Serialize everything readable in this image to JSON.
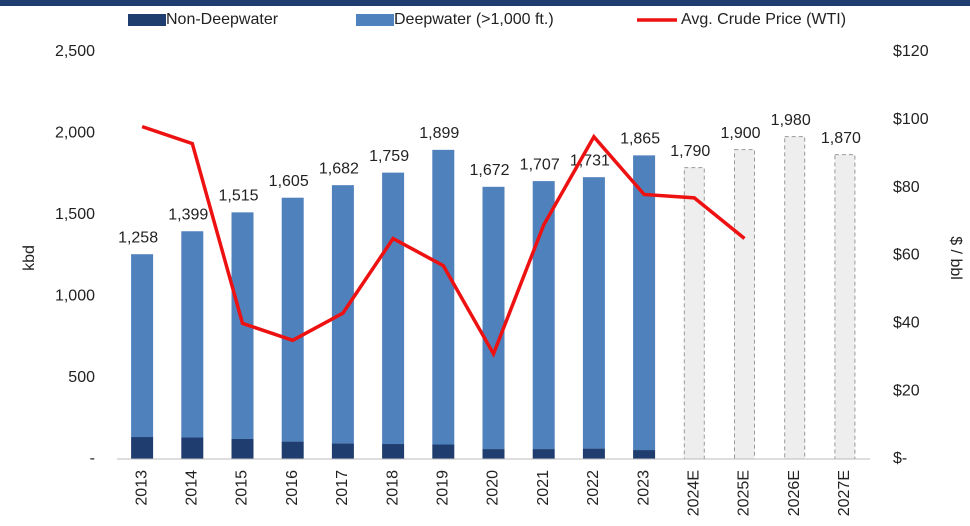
{
  "chart_data": {
    "type": "bar",
    "categories": [
      "2013",
      "2014",
      "2015",
      "2016",
      "2017",
      "2018",
      "2019",
      "2020",
      "2021",
      "2022",
      "2023",
      "2024E",
      "2025E",
      "2026E",
      "2027E"
    ],
    "series": [
      {
        "name": "Non-Deepwater",
        "color": "#1f3d6e",
        "values": [
          135,
          132,
          123,
          107,
          95,
          92,
          89,
          61,
          61,
          64,
          55,
          null,
          null,
          null,
          null
        ]
      },
      {
        "name": "Deepwater (>1,000 ft.)",
        "color": "#4f81bd",
        "values": [
          1123,
          1267,
          1392,
          1498,
          1587,
          1667,
          1810,
          1611,
          1646,
          1667,
          1810,
          null,
          null,
          null,
          null
        ]
      },
      {
        "name": "Avg. Crude Price (WTI)",
        "color": "#ee1111",
        "type": "line",
        "axis": "y2",
        "values": [
          98,
          93,
          40,
          35,
          43,
          65,
          57,
          31,
          69,
          95,
          78,
          77,
          65,
          null,
          null
        ]
      }
    ],
    "totals": [
      1258,
      1399,
      1515,
      1605,
      1682,
      1759,
      1899,
      1672,
      1707,
      1731,
      1865,
      1790,
      1900,
      1980,
      1870
    ],
    "totals_labels": [
      "1,258",
      "1,399",
      "1,515",
      "1,605",
      "1,682",
      "1,759",
      "1,899",
      "1,672",
      "1,707",
      "1,731",
      "1,865",
      "1,790",
      "1,900",
      "1,980",
      "1,870"
    ],
    "forecast_color": "#eeeeee",
    "ylabel": "kbd",
    "y2label": "$ / bbl",
    "ylim": [
      0,
      2500
    ],
    "yticks": [
      {
        "value": 0,
        "label": "-"
      },
      500,
      {
        "value": 1000,
        "label": "1,000"
      },
      {
        "value": 1500,
        "label": "1,500"
      },
      {
        "value": 2000,
        "label": "2,000"
      },
      {
        "value": 2500,
        "label": "2,500"
      }
    ],
    "y2lim": [
      0,
      120
    ],
    "y2ticks": [
      {
        "value": 0,
        "label": "$-"
      },
      {
        "value": 20,
        "label": "$20"
      },
      {
        "value": 40,
        "label": "$40"
      },
      {
        "value": 60,
        "label": "$60"
      },
      {
        "value": 80,
        "label": "$80"
      },
      {
        "value": 100,
        "label": "$100"
      },
      {
        "value": 120,
        "label": "$120"
      }
    ]
  }
}
